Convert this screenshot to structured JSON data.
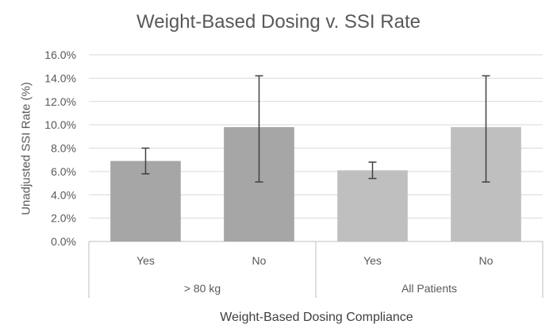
{
  "chart_data": {
    "type": "bar",
    "title": "Weight-Based Dosing v. SSI Rate",
    "ylabel": "Unadjusted SSI Rate (%)",
    "xlabel": "Weight-Based Dosing Compliance",
    "ylim": [
      0,
      16
    ],
    "yticks": [
      "0.0%",
      "2.0%",
      "4.0%",
      "6.0%",
      "8.0%",
      "10.0%",
      "12.0%",
      "14.0%",
      "16.0%"
    ],
    "grid": true,
    "legend": "none",
    "groups": [
      {
        "label": "> 80 kg",
        "color": "#a6a6a6",
        "bars": [
          {
            "category": "Yes",
            "value": 6.9,
            "error_low": 5.8,
            "error_high": 8.0
          },
          {
            "category": "No",
            "value": 9.8,
            "error_low": 5.1,
            "error_high": 14.2
          }
        ]
      },
      {
        "label": "All Patients",
        "color": "#bfbfbf",
        "bars": [
          {
            "category": "Yes",
            "value": 6.1,
            "error_low": 5.4,
            "error_high": 6.8
          },
          {
            "category": "No",
            "value": 9.8,
            "error_low": 5.1,
            "error_high": 14.2
          }
        ]
      }
    ]
  }
}
